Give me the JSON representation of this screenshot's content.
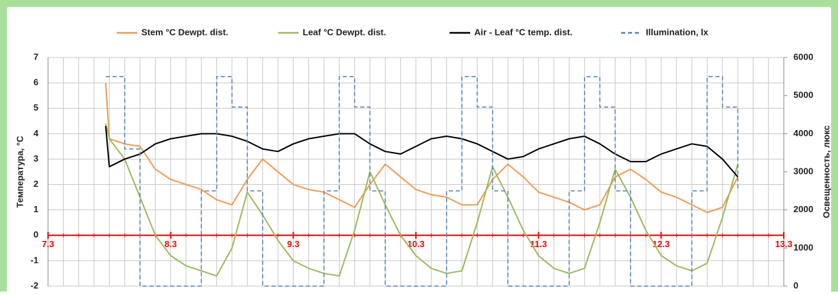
{
  "chart_data": {
    "type": "line",
    "legend": "top",
    "x": [
      7.47,
      7.5,
      7.625,
      7.75,
      7.875,
      8.0,
      8.125,
      8.25,
      8.375,
      8.5,
      8.625,
      8.75,
      8.875,
      9.0,
      9.125,
      9.25,
      9.375,
      9.5,
      9.625,
      9.75,
      9.875,
      10.0,
      10.125,
      10.25,
      10.375,
      10.5,
      10.625,
      10.75,
      10.875,
      11.0,
      11.125,
      11.25,
      11.375,
      11.5,
      11.625,
      11.75,
      11.875,
      12.0,
      12.125,
      12.25,
      12.375,
      12.5,
      12.625
    ],
    "xlim": [
      7,
      13
    ],
    "xticks": [
      {
        "value": 7,
        "label": "7.3"
      },
      {
        "value": 8,
        "label": "8.3"
      },
      {
        "value": 9,
        "label": "9.3"
      },
      {
        "value": 10,
        "label": "10.3"
      },
      {
        "value": 11,
        "label": "11.3"
      },
      {
        "value": 12,
        "label": "12.3"
      },
      {
        "value": 13,
        "label": "13.3"
      }
    ],
    "x_minor_step": 0.125,
    "xtick_color": "#ff0000",
    "hline": {
      "value": 0,
      "color": "#ff0000"
    },
    "ylim": [
      -2,
      7
    ],
    "yticks": [
      -2,
      -1,
      0,
      1,
      2,
      3,
      4,
      5,
      6,
      7
    ],
    "y2lim": [
      0,
      6000
    ],
    "y2ticks": [
      0,
      1000,
      2000,
      3000,
      4000,
      5000,
      6000
    ],
    "ylabel": "Температура, °C",
    "y2label": "Освещенность, люкс",
    "grid": true,
    "series": [
      {
        "name": "Stem °C Dewpt. dist.",
        "color": "#f39a4f",
        "dash": false,
        "step": false,
        "values": [
          6.0,
          3.8,
          3.6,
          3.5,
          2.6,
          2.2,
          2.0,
          1.8,
          1.4,
          1.2,
          2.2,
          3.0,
          2.5,
          2.0,
          1.8,
          1.7,
          1.4,
          1.1,
          2.0,
          2.8,
          2.3,
          1.8,
          1.6,
          1.5,
          1.2,
          1.2,
          2.2,
          2.8,
          2.3,
          1.7,
          1.5,
          1.3,
          1.0,
          1.2,
          2.3,
          2.6,
          2.2,
          1.7,
          1.5,
          1.2,
          0.9,
          1.1,
          2.3
        ]
      },
      {
        "name": "Leaf °C Dewpt. dist.",
        "color": "#9bbb59",
        "dash": false,
        "step": false,
        "values": [
          4.4,
          3.8,
          3.0,
          1.5,
          0.0,
          -0.8,
          -1.2,
          -1.4,
          -1.6,
          -0.5,
          1.7,
          0.8,
          -0.2,
          -1.0,
          -1.3,
          -1.5,
          -1.6,
          0.2,
          2.5,
          1.2,
          0.0,
          -0.8,
          -1.3,
          -1.5,
          -1.4,
          0.5,
          2.7,
          1.5,
          0.2,
          -0.8,
          -1.3,
          -1.5,
          -1.3,
          0.5,
          2.6,
          1.5,
          0.2,
          -0.8,
          -1.2,
          -1.4,
          -1.1,
          0.7,
          2.8
        ]
      },
      {
        "name": "Air - Leaf °C temp. dist.",
        "color": "#000000",
        "dash": false,
        "step": false,
        "values": [
          4.3,
          2.7,
          3.0,
          3.2,
          3.6,
          3.8,
          3.9,
          4.0,
          4.0,
          3.9,
          3.7,
          3.4,
          3.3,
          3.6,
          3.8,
          3.9,
          4.0,
          4.0,
          3.6,
          3.3,
          3.2,
          3.5,
          3.8,
          3.9,
          3.8,
          3.6,
          3.3,
          3.0,
          3.1,
          3.4,
          3.6,
          3.8,
          3.9,
          3.6,
          3.2,
          2.9,
          2.9,
          3.2,
          3.4,
          3.6,
          3.5,
          3.0,
          2.3
        ]
      },
      {
        "name": "Illumination, lx",
        "color": "#4f81bd",
        "dash": true,
        "step": true,
        "axis": "y2",
        "values": [
          5500,
          5500,
          3600,
          0,
          0,
          0,
          0,
          2500,
          5500,
          4700,
          2500,
          0,
          0,
          0,
          0,
          2500,
          5500,
          4700,
          2500,
          0,
          0,
          0,
          0,
          2500,
          5500,
          4700,
          2500,
          0,
          0,
          0,
          0,
          2500,
          5500,
          4700,
          2500,
          0,
          0,
          0,
          0,
          2500,
          5500,
          4700,
          2500
        ]
      }
    ]
  }
}
